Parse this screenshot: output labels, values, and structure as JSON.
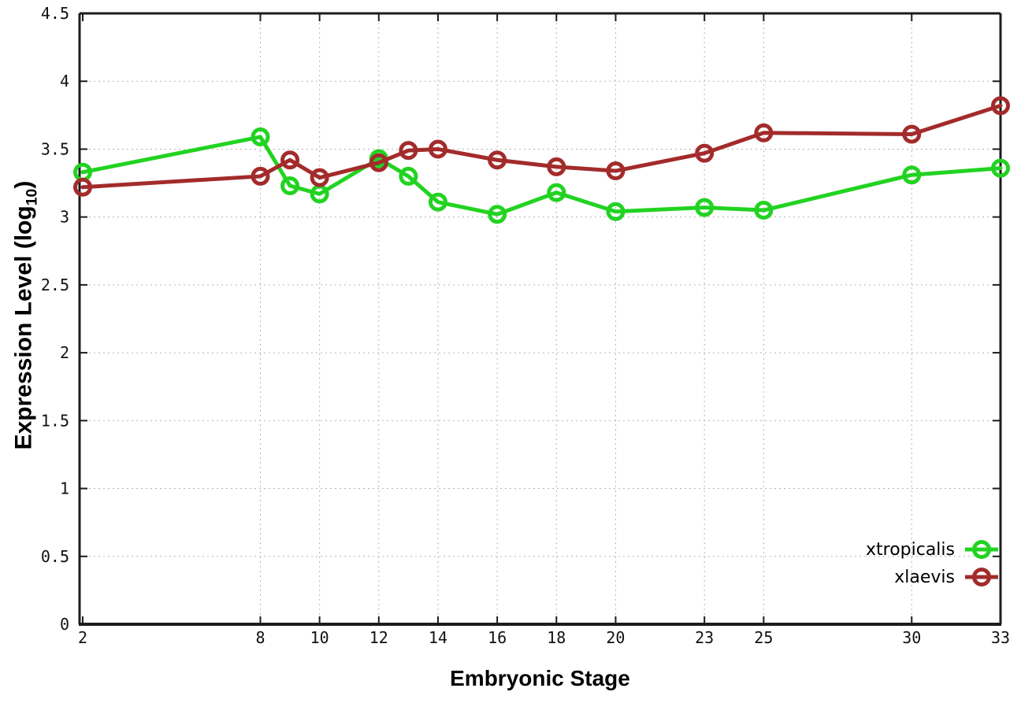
{
  "figure": {
    "background": "#ffffff"
  },
  "axes": {
    "x_title": "Embryonic Stage",
    "y_title_base": "Expression Level (log",
    "y_title_sub": "10",
    "y_title_close": ")"
  },
  "chart_data": {
    "type": "line",
    "title": "",
    "xlabel": "Embryonic Stage",
    "ylabel": "Expression Level (log10)",
    "x": [
      2,
      8,
      9,
      10,
      12,
      13,
      14,
      16,
      18,
      20,
      23,
      25,
      30,
      33
    ],
    "series": [
      {
        "name": "xtropicalis",
        "color": "#22d322",
        "marker": "open-circle",
        "values": [
          3.33,
          3.59,
          3.23,
          3.17,
          3.43,
          3.3,
          3.11,
          3.02,
          3.18,
          3.04,
          3.07,
          3.05,
          3.31,
          3.36
        ]
      },
      {
        "name": "xlaevis",
        "color": "#a32b2b",
        "marker": "open-circle",
        "values": [
          3.22,
          3.3,
          3.42,
          3.29,
          3.4,
          3.49,
          3.5,
          3.42,
          3.37,
          3.34,
          3.47,
          3.62,
          3.61,
          3.82
        ]
      }
    ],
    "xlim": [
      2,
      33
    ],
    "ylim": [
      0,
      4.5
    ],
    "xticks": [
      2,
      8,
      10,
      12,
      14,
      16,
      18,
      20,
      23,
      25,
      30,
      33
    ],
    "xtick_labels": [
      "2",
      "8",
      "10",
      "12",
      "14",
      "16",
      "18",
      "20",
      "23",
      "25",
      "30",
      "33"
    ],
    "yticks": [
      0,
      0.5,
      1,
      1.5,
      2,
      2.5,
      3,
      3.5,
      4,
      4.5
    ],
    "ytick_labels": [
      "0",
      "0.5",
      "1",
      "1.5",
      "2",
      "2.5",
      "3",
      "3.5",
      "4",
      "4.5"
    ],
    "grid": true,
    "legend_position": "inside-bottom-right",
    "colors": {
      "grid": "#b5b5b5",
      "axis": "#1c1c1c",
      "text": "#111111"
    }
  }
}
